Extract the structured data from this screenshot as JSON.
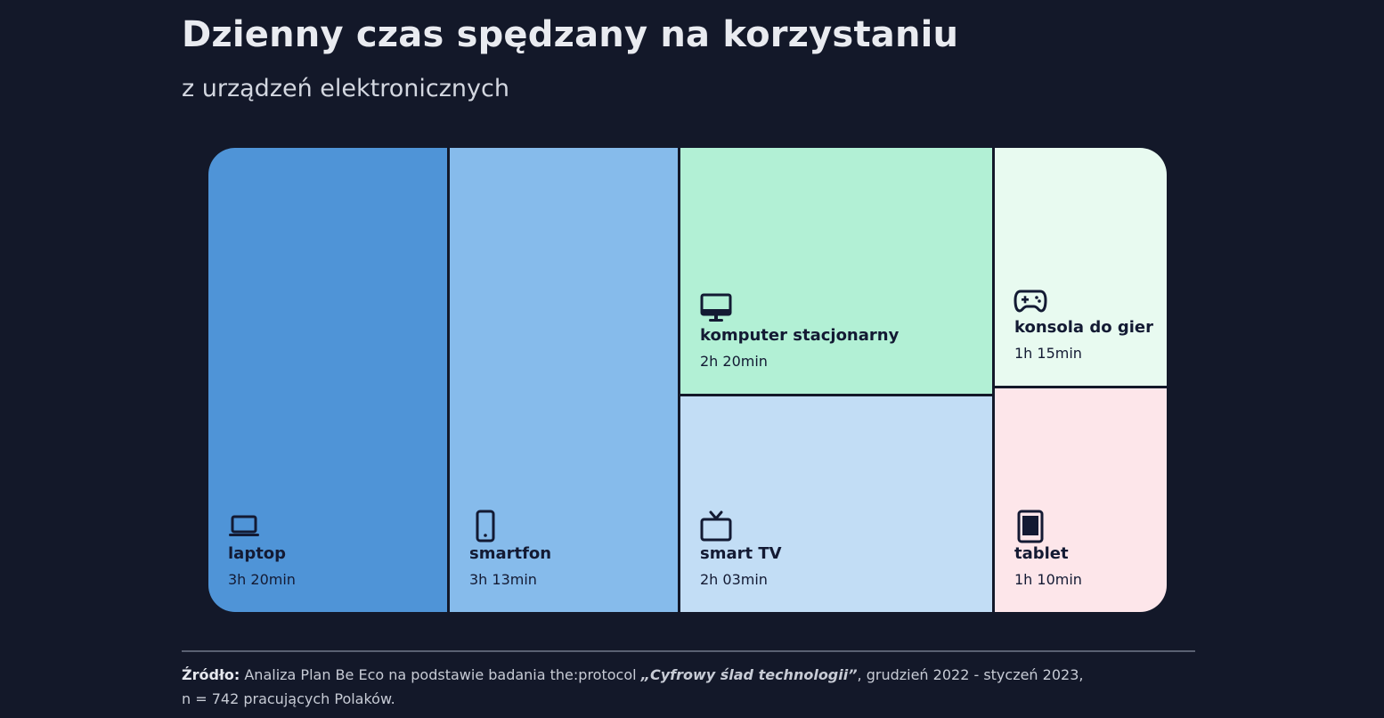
{
  "title": "Dzienny czas spędzany na korzystaniu",
  "subtitle": "z urządzeń elektronicznych",
  "chart_data": {
    "type": "treemap",
    "title": "Dzienny czas spędzany na korzystaniu",
    "subtitle": "z urządzeń elektronicznych",
    "items": [
      {
        "name": "laptop",
        "value_label": "3h 20min",
        "minutes": 200,
        "color": "#4f94d7",
        "icon": "laptop-icon"
      },
      {
        "name": "smartfon",
        "value_label": "3h 13min",
        "minutes": 193,
        "color": "#86bbeb",
        "icon": "smartphone-icon"
      },
      {
        "name": "komputer stacjonarny",
        "value_label": "2h 20min",
        "minutes": 140,
        "color": "#b2f0d5",
        "icon": "desktop-monitor-icon"
      },
      {
        "name": "smart TV",
        "value_label": "2h 03min",
        "minutes": 123,
        "color": "#c2ddf5",
        "icon": "tv-icon"
      },
      {
        "name": "konsola do gier",
        "value_label": "1h 15min",
        "minutes": 75,
        "color": "#e8faf0",
        "icon": "gamepad-icon"
      },
      {
        "name": "tablet",
        "value_label": "1h 10min",
        "minutes": 70,
        "color": "#fde6ea",
        "icon": "tablet-icon"
      }
    ]
  },
  "source": {
    "lead": "Źródło:",
    "text_before": " Analiza Plan Be Eco na podstawie badania the:protocol ",
    "study_title": "„Cyfrowy ślad technologii”",
    "text_after": ", grudzień 2022 - styczeń 2023,",
    "line2": "n = 742 pracujących Polaków."
  },
  "colors": {
    "background": "#131829",
    "text_dark": "#131a33"
  }
}
